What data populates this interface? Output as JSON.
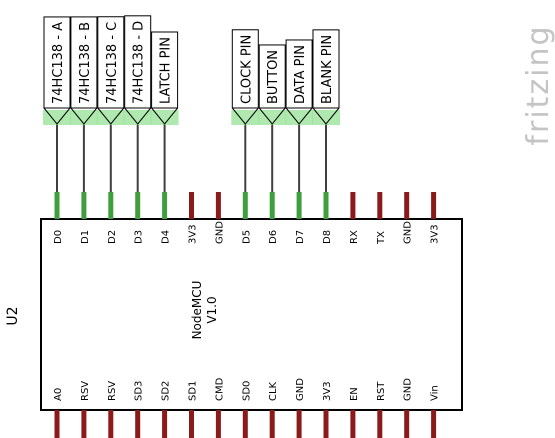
{
  "component": {
    "ref": "U2",
    "name_lines": [
      "NodeMCU",
      "V1.0"
    ],
    "top_pins": [
      {
        "label": "D0",
        "color": "#3f9f3f"
      },
      {
        "label": "D1",
        "color": "#3f9f3f"
      },
      {
        "label": "D2",
        "color": "#3f9f3f"
      },
      {
        "label": "D3",
        "color": "#3f9f3f"
      },
      {
        "label": "D4",
        "color": "#3f9f3f"
      },
      {
        "label": "3V3",
        "color": "#8b1a1a"
      },
      {
        "label": "GND",
        "color": "#8b1a1a"
      },
      {
        "label": "D5",
        "color": "#3f9f3f"
      },
      {
        "label": "D6",
        "color": "#3f9f3f"
      },
      {
        "label": "D7",
        "color": "#3f9f3f"
      },
      {
        "label": "D8",
        "color": "#3f9f3f"
      },
      {
        "label": "RX",
        "color": "#8b1a1a"
      },
      {
        "label": "TX",
        "color": "#8b1a1a"
      },
      {
        "label": "GND",
        "color": "#8b1a1a"
      },
      {
        "label": "3V3",
        "color": "#8b1a1a"
      }
    ],
    "bottom_pins": [
      "A0",
      "RSV",
      "RSV",
      "SD3",
      "SD2",
      "SD1",
      "CMD",
      "SD0",
      "CLK",
      "GND",
      "3V3",
      "EN",
      "RST",
      "GND",
      "Vin"
    ],
    "bottom_pin_color": "#8b1a1a"
  },
  "net_labels": [
    {
      "text": "74HC138 - A",
      "pin": "D0"
    },
    {
      "text": "74HC138 - B",
      "pin": "D1"
    },
    {
      "text": "74HC138 - C",
      "pin": "D2"
    },
    {
      "text": "74HC138 - D",
      "pin": "D3"
    },
    {
      "text": "LATCH PIN",
      "pin": "D4"
    },
    {
      "text": "CLOCK PIN",
      "pin": "D5"
    },
    {
      "text": "BUTTON",
      "pin": "D6"
    },
    {
      "text": "DATA PIN",
      "pin": "D7"
    },
    {
      "text": "BLANK PIN",
      "pin": "D8"
    }
  ],
  "watermark": "fritzing"
}
